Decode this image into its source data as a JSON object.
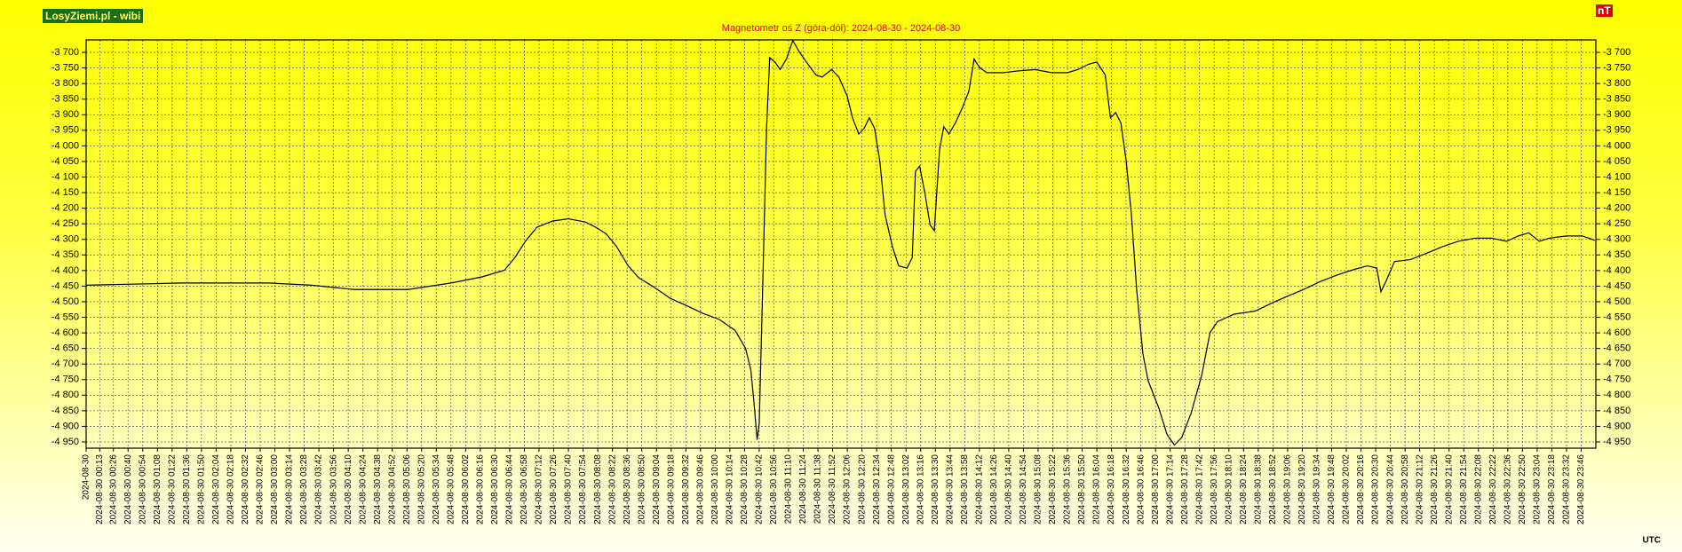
{
  "brand": "LosyZiemi.pl - wibi",
  "chart_data": {
    "type": "line",
    "title": "Magnetometr oś Z (góra-dół): 2024-08-30 - 2024-08-30",
    "y_unit": "nT",
    "x_label": "UTC",
    "color": "#000000",
    "grid": true,
    "xlim": [
      "2024-08-30 00:00",
      "2024-08-31 00:00"
    ],
    "ylim": [
      -4970,
      -3660
    ],
    "yticks": [
      {
        "value": -3700,
        "label": "-3 700"
      },
      {
        "value": -3750,
        "label": "-3 750"
      },
      {
        "value": -3800,
        "label": "-3 800"
      },
      {
        "value": -3850,
        "label": "-3 850"
      },
      {
        "value": -3900,
        "label": "-3 900"
      },
      {
        "value": -3950,
        "label": "-3 950"
      },
      {
        "value": -4000,
        "label": "-4 000"
      },
      {
        "value": -4050,
        "label": "-4 050"
      },
      {
        "value": -4100,
        "label": "-4 100"
      },
      {
        "value": -4150,
        "label": "-4 150"
      },
      {
        "value": -4200,
        "label": "-4 200"
      },
      {
        "value": -4250,
        "label": "-4 250"
      },
      {
        "value": -4300,
        "label": "-4 300"
      },
      {
        "value": -4350,
        "label": "-4 350"
      },
      {
        "value": -4400,
        "label": "-4 400"
      },
      {
        "value": -4450,
        "label": "-4 450"
      },
      {
        "value": -4500,
        "label": "-4 500"
      },
      {
        "value": -4550,
        "label": "-4 550"
      },
      {
        "value": -4600,
        "label": "-4 600"
      },
      {
        "value": -4650,
        "label": "-4 650"
      },
      {
        "value": -4700,
        "label": "-4 700"
      },
      {
        "value": -4750,
        "label": "-4 750"
      },
      {
        "value": -4800,
        "label": "-4 800"
      },
      {
        "value": -4850,
        "label": "-4 850"
      },
      {
        "value": -4900,
        "label": "-4 900"
      },
      {
        "value": -4950,
        "label": "-4 950"
      }
    ],
    "xticks": [
      "2024-08-30",
      "2024-08-30 00:13",
      "2024-08-30 00:26",
      "2024-08-30 00:40",
      "2024-08-30 00:54",
      "2024-08-30 01:08",
      "2024-08-30 01:22",
      "2024-08-30 01:36",
      "2024-08-30 01:50",
      "2024-08-30 02:04",
      "2024-08-30 02:18",
      "2024-08-30 02:32",
      "2024-08-30 02:46",
      "2024-08-30 03:00",
      "2024-08-30 03:14",
      "2024-08-30 03:28",
      "2024-08-30 03:42",
      "2024-08-30 03:56",
      "2024-08-30 04:10",
      "2024-08-30 04:24",
      "2024-08-30 04:38",
      "2024-08-30 04:52",
      "2024-08-30 05:06",
      "2024-08-30 05:20",
      "2024-08-30 05:34",
      "2024-08-30 05:48",
      "2024-08-30 06:02",
      "2024-08-30 06:16",
      "2024-08-30 06:30",
      "2024-08-30 06:44",
      "2024-08-30 06:58",
      "2024-08-30 07:12",
      "2024-08-30 07:26",
      "2024-08-30 07:40",
      "2024-08-30 07:54",
      "2024-08-30 08:08",
      "2024-08-30 08:22",
      "2024-08-30 08:36",
      "2024-08-30 08:50",
      "2024-08-30 09:04",
      "2024-08-30 09:18",
      "2024-08-30 09:32",
      "2024-08-30 09:46",
      "2024-08-30 10:00",
      "2024-08-30 10:14",
      "2024-08-30 10:28",
      "2024-08-30 10:42",
      "2024-08-30 10:56",
      "2024-08-30 11:10",
      "2024-08-30 11:24",
      "2024-08-30 11:38",
      "2024-08-30 11:52",
      "2024-08-30 12:06",
      "2024-08-30 12:20",
      "2024-08-30 12:34",
      "2024-08-30 12:48",
      "2024-08-30 13:02",
      "2024-08-30 13:16",
      "2024-08-30 13:30",
      "2024-08-30 13:44",
      "2024-08-30 13:58",
      "2024-08-30 14:12",
      "2024-08-30 14:26",
      "2024-08-30 14:40",
      "2024-08-30 14:54",
      "2024-08-30 15:08",
      "2024-08-30 15:22",
      "2024-08-30 15:36",
      "2024-08-30 15:50",
      "2024-08-30 16:04",
      "2024-08-30 16:18",
      "2024-08-30 16:32",
      "2024-08-30 16:46",
      "2024-08-30 17:00",
      "2024-08-30 17:14",
      "2024-08-30 17:28",
      "2024-08-30 17:42",
      "2024-08-30 17:56",
      "2024-08-30 18:10",
      "2024-08-30 18:24",
      "2024-08-30 18:38",
      "2024-08-30 18:52",
      "2024-08-30 19:06",
      "2024-08-30 19:20",
      "2024-08-30 19:34",
      "2024-08-30 19:48",
      "2024-08-30 20:02",
      "2024-08-30 20:16",
      "2024-08-30 20:30",
      "2024-08-30 20:44",
      "2024-08-30 20:58",
      "2024-08-30 21:12",
      "2024-08-30 21:26",
      "2024-08-30 21:40",
      "2024-08-30 21:54",
      "2024-08-30 22:08",
      "2024-08-30 22:22",
      "2024-08-30 22:36",
      "2024-08-30 22:50",
      "2024-08-30 23:04",
      "2024-08-30 23:18",
      "2024-08-30 23:32",
      "2024-08-30 23:46"
    ],
    "x": [
      "2024-08-30 00:00",
      "2024-08-30 01:32",
      "2024-08-30 02:54",
      "2024-08-30 03:35",
      "2024-08-30 04:16",
      "2024-08-30 05:07",
      "2024-08-30 05:48",
      "2024-08-30 06:18",
      "2024-08-30 06:39",
      "2024-08-30 06:49",
      "2024-08-30 06:59",
      "2024-08-30 07:10",
      "2024-08-30 07:25",
      "2024-08-30 07:40",
      "2024-08-30 07:56",
      "2024-08-30 08:06",
      "2024-08-30 08:16",
      "2024-08-30 08:26",
      "2024-08-30 08:37",
      "2024-08-30 08:47",
      "2024-08-30 09:02",
      "2024-08-30 09:17",
      "2024-08-30 09:33",
      "2024-08-30 09:48",
      "2024-08-30 10:04",
      "2024-08-30 10:19",
      "2024-08-30 10:29",
      "2024-08-30 10:34",
      "2024-08-30 10:37",
      "2024-08-30 10:40",
      "2024-08-30 10:42",
      "2024-08-30 10:45",
      "2024-08-30 10:49",
      "2024-08-30 10:52",
      "2024-08-30 10:57",
      "2024-08-30 11:02",
      "2024-08-30 11:08",
      "2024-08-30 11:14",
      "2024-08-30 11:20",
      "2024-08-30 11:27",
      "2024-08-30 11:36",
      "2024-08-30 11:42",
      "2024-08-30 11:51",
      "2024-08-30 11:58",
      "2024-08-30 12:06",
      "2024-08-30 12:11",
      "2024-08-30 12:17",
      "2024-08-30 12:22",
      "2024-08-30 12:27",
      "2024-08-30 12:32",
      "2024-08-30 12:37",
      "2024-08-30 12:42",
      "2024-08-30 12:49",
      "2024-08-30 12:55",
      "2024-08-30 13:03",
      "2024-08-30 13:08",
      "2024-08-30 13:11",
      "2024-08-30 13:15",
      "2024-08-30 13:20",
      "2024-08-30 13:25",
      "2024-08-30 13:29",
      "2024-08-30 13:34",
      "2024-08-30 13:38",
      "2024-08-30 13:43",
      "2024-08-30 13:49",
      "2024-08-30 13:56",
      "2024-08-30 14:02",
      "2024-08-30 14:07",
      "2024-08-30 14:12",
      "2024-08-30 14:19",
      "2024-08-30 14:35",
      "2024-08-30 14:50",
      "2024-08-30 15:05",
      "2024-08-30 15:21",
      "2024-08-30 15:36",
      "2024-08-30 15:46",
      "2024-08-30 15:56",
      "2024-08-30 16:04",
      "2024-08-30 16:12",
      "2024-08-30 16:17",
      "2024-08-30 16:22",
      "2024-08-30 16:27",
      "2024-08-30 16:32",
      "2024-08-30 16:37",
      "2024-08-30 16:42",
      "2024-08-30 16:48",
      "2024-08-30 16:53",
      "2024-08-30 17:03",
      "2024-08-30 17:11",
      "2024-08-30 17:18",
      "2024-08-30 17:25",
      "2024-08-30 17:34",
      "2024-08-30 17:44",
      "2024-08-30 17:52",
      "2024-08-30 17:59",
      "2024-08-30 18:15",
      "2024-08-30 18:35",
      "2024-08-30 18:50",
      "2024-08-30 19:06",
      "2024-08-30 19:21",
      "2024-08-30 19:36",
      "2024-08-30 19:52",
      "2024-08-30 20:07",
      "2024-08-30 20:22",
      "2024-08-30 20:31",
      "2024-08-30 20:35",
      "2024-08-30 20:40",
      "2024-08-30 20:48",
      "2024-08-30 21:03",
      "2024-08-30 21:19",
      "2024-08-30 21:34",
      "2024-08-30 21:49",
      "2024-08-30 22:05",
      "2024-08-30 22:20",
      "2024-08-30 22:35",
      "2024-08-30 22:46",
      "2024-08-30 22:56",
      "2024-08-30 23:06",
      "2024-08-30 23:16",
      "2024-08-30 23:32",
      "2024-08-30 23:47",
      "2024-08-30 23:59"
    ],
    "values": [
      -4447,
      -4440,
      -4440,
      -4447,
      -4461,
      -4461,
      -4440,
      -4420,
      -4399,
      -4358,
      -4306,
      -4261,
      -4241,
      -4234,
      -4244,
      -4261,
      -4282,
      -4323,
      -4385,
      -4423,
      -4454,
      -4489,
      -4513,
      -4537,
      -4557,
      -4592,
      -4650,
      -4719,
      -4823,
      -4943,
      -4891,
      -4495,
      -3944,
      -3717,
      -3731,
      -3755,
      -3721,
      -3662,
      -3697,
      -3731,
      -3772,
      -3779,
      -3755,
      -3779,
      -3841,
      -3910,
      -3962,
      -3944,
      -3910,
      -3944,
      -4048,
      -4220,
      -4323,
      -4385,
      -4392,
      -4358,
      -4082,
      -4065,
      -4151,
      -4254,
      -4272,
      -4013,
      -3938,
      -3962,
      -3927,
      -3876,
      -3824,
      -3721,
      -3748,
      -3765,
      -3765,
      -3759,
      -3755,
      -3765,
      -3765,
      -3755,
      -3738,
      -3731,
      -3772,
      -3910,
      -3893,
      -3927,
      -4048,
      -4220,
      -4461,
      -4668,
      -4754,
      -4840,
      -4926,
      -4960,
      -4936,
      -4857,
      -4737,
      -4599,
      -4564,
      -4540,
      -4530,
      -4506,
      -4482,
      -4461,
      -4437,
      -4416,
      -4399,
      -4385,
      -4392,
      -4468,
      -4433,
      -4371,
      -4365,
      -4344,
      -4323,
      -4306,
      -4296,
      -4296,
      -4306,
      -4289,
      -4279,
      -4306,
      -4296,
      -4289,
      -4289,
      -4303
    ]
  }
}
